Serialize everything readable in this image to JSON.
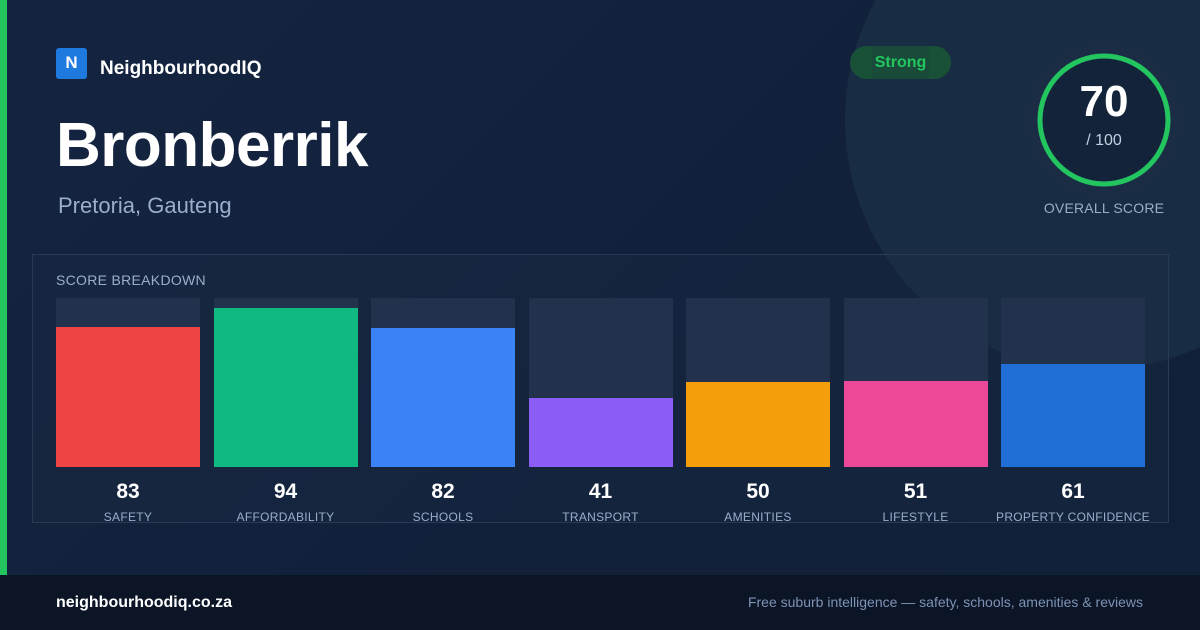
{
  "brand": {
    "logo_letter": "N",
    "name": "NeighbourhoodIQ"
  },
  "suburb": {
    "name": "Bronberrik",
    "location": "Pretoria, Gauteng"
  },
  "badge": {
    "label": "Strong"
  },
  "overall": {
    "score": "70",
    "max": "/ 100",
    "label": "OVERALL SCORE",
    "fraction": 0.7
  },
  "breakdown": {
    "title": "SCORE BREAKDOWN",
    "items": [
      {
        "label": "SAFETY",
        "value": 83,
        "color": "#ef4444"
      },
      {
        "label": "AFFORDABILITY",
        "value": 94,
        "color": "#10b981"
      },
      {
        "label": "SCHOOLS",
        "value": 82,
        "color": "#3b82f6"
      },
      {
        "label": "TRANSPORT",
        "value": 41,
        "color": "#8b5cf6"
      },
      {
        "label": "AMENITIES",
        "value": 50,
        "color": "#f59e0b"
      },
      {
        "label": "LIFESTYLE",
        "value": 51,
        "color": "#ec4899"
      },
      {
        "label": "PROPERTY CONFIDENCE",
        "value": 61,
        "color": "#1f6fd6"
      }
    ]
  },
  "footer": {
    "domain": "neighbourhoodiq.co.za",
    "tagline": "Free suburb intelligence — safety, schools, amenities & reviews"
  },
  "colors": {
    "accent": "#22c55e",
    "background": "#13213a",
    "footer": "#0b1526"
  }
}
